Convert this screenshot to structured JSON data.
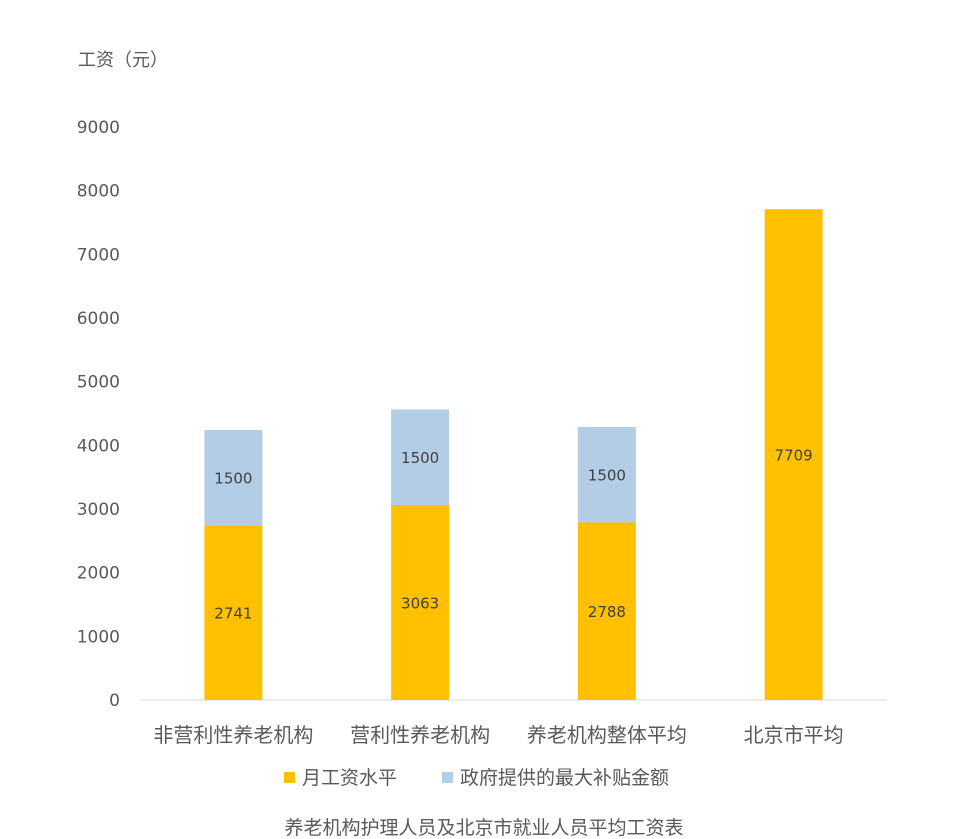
{
  "chart_data": {
    "type": "bar",
    "stacked": true,
    "title": "",
    "ylabel": "工资（元）",
    "xlabel": "",
    "caption": "养老机构护理人员及北京市就业人员平均工资表",
    "ylim": [
      0,
      9000
    ],
    "yticks": [
      "0",
      "1000",
      "2000",
      "3000",
      "4000",
      "5000",
      "6000",
      "7000",
      "8000",
      "9000"
    ],
    "categories": [
      "非营利性养老机构",
      "营利性养老机构",
      "养老机构整体平均",
      "北京市平均"
    ],
    "series": [
      {
        "name": "月工资水平",
        "values": [
          2741,
          3063,
          2788,
          7709
        ],
        "color": "#FFC000"
      },
      {
        "name": "政府提供的最大补贴金额",
        "values": [
          1500,
          1500,
          1500,
          null
        ],
        "color": "#B4CDE6"
      }
    ],
    "data_labels": true,
    "grid": false,
    "legend": "bottom"
  }
}
